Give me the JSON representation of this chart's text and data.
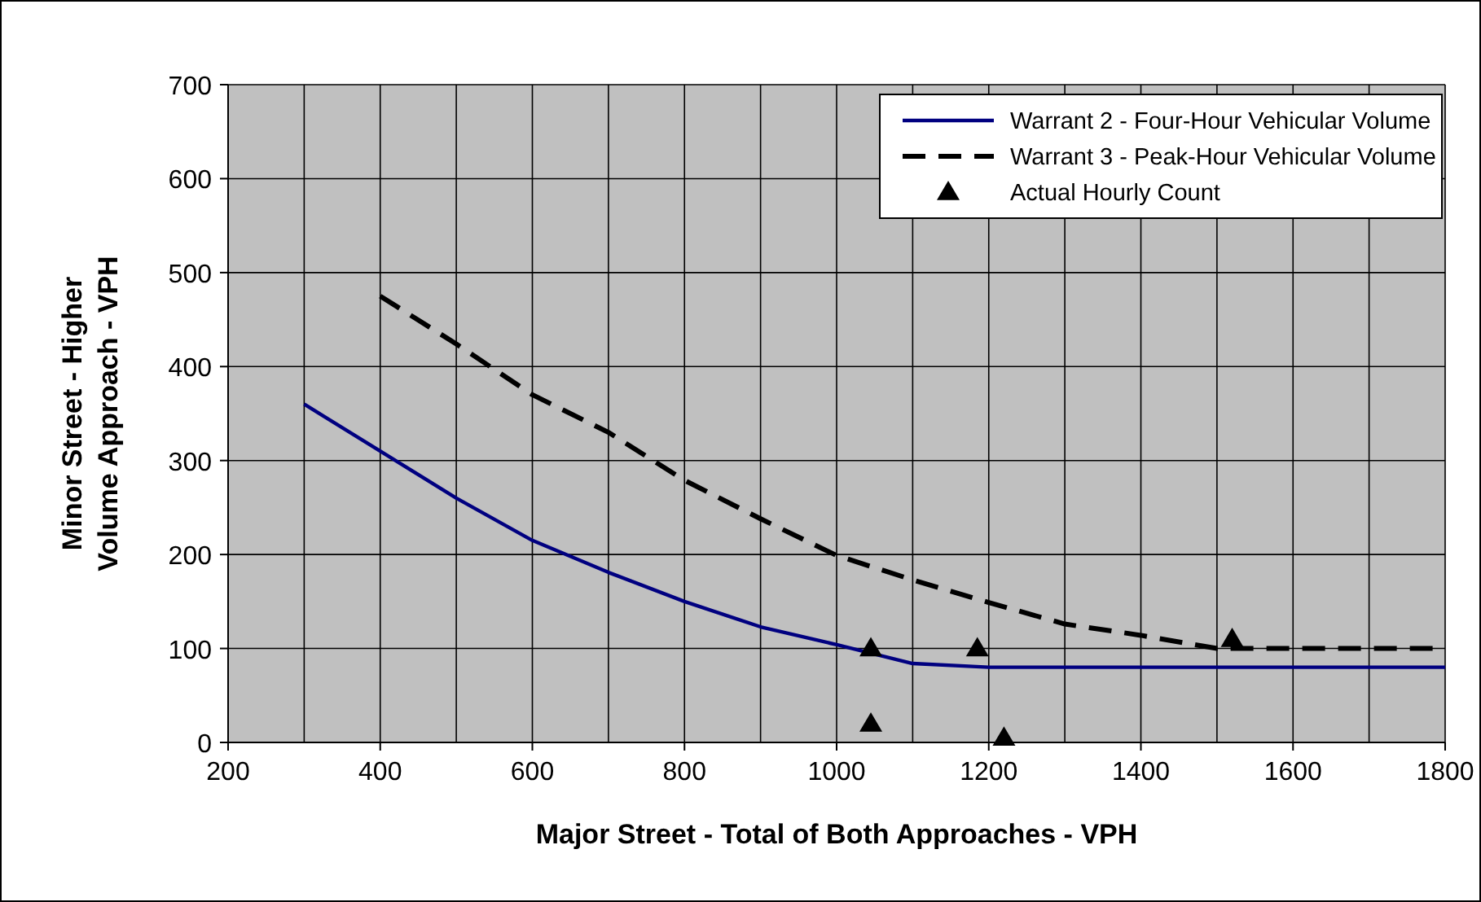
{
  "chart_data": {
    "type": "line",
    "xlabel": "Major Street - Total of Both Approaches - VPH",
    "ylabel": "Minor Street - Higher Volume Approach - VPH",
    "xlim": [
      200,
      1800
    ],
    "ylim": [
      0,
      700
    ],
    "xticks": [
      200,
      400,
      600,
      800,
      1000,
      1200,
      1400,
      1600,
      1800
    ],
    "yticks": [
      0,
      100,
      200,
      300,
      400,
      500,
      600,
      700
    ],
    "grid": true,
    "legend": "top right",
    "marker": "none",
    "series": [
      {
        "name": "Warrant 2 - Four-Hour Vehicular Volume",
        "color": "#000080",
        "line_style": "solid",
        "x": [
          300,
          400,
          500,
          600,
          700,
          800,
          900,
          1000,
          1100,
          1200,
          1300,
          1400,
          1500,
          1600,
          1700,
          1800
        ],
        "values": [
          360,
          310,
          260,
          215,
          181,
          150,
          123,
          104,
          84,
          80,
          80,
          80,
          80,
          80,
          80,
          80
        ]
      },
      {
        "name": "Warrant 3 - Peak-Hour Vehicular Volume",
        "color": "#000000",
        "line_style": "dashed",
        "x": [
          400,
          500,
          600,
          700,
          800,
          900,
          1000,
          1100,
          1200,
          1300,
          1400,
          1500,
          1600,
          1700,
          1800
        ],
        "values": [
          475,
          424,
          370,
          330,
          279,
          238,
          199,
          173,
          149,
          126,
          114,
          100,
          100,
          100,
          100
        ]
      },
      {
        "name": "Actual Hourly Count",
        "type": "scatter",
        "marker": "triangle",
        "color": "#000000",
        "x": [
          1045,
          1045,
          1185,
          1220,
          1520
        ],
        "values": [
          100,
          20,
          100,
          5,
          110
        ]
      }
    ]
  }
}
